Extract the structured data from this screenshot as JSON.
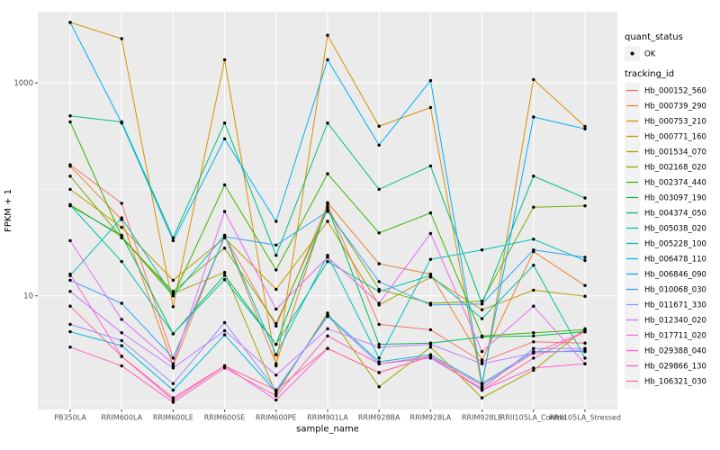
{
  "chart_data": {
    "type": "line",
    "title": "",
    "xlabel": "sample_name",
    "ylabel": "FPKM + 1",
    "y_scale": "log10",
    "y_tick_values": [
      10,
      1000
    ],
    "y_tick_labels": [
      "10",
      "1000"
    ],
    "y_gridlines_minor": [
      1,
      100
    ],
    "ylim": [
      0.7,
      5200
    ],
    "grid": "on",
    "legend_position": "right",
    "categories": [
      "PB350LA",
      "RRIM600LA",
      "RRIM600LE",
      "RRIM600SE",
      "RRIM600PE",
      "RRIM901LA",
      "RRIM928BA",
      "RRIM928LA",
      "RRIM928LE",
      "RRII105LA_Control",
      "RRII105LA_Stressed"
    ],
    "legend": {
      "quant_status": {
        "title": "quant_status",
        "items": [
          {
            "label": "OK",
            "shape": "point",
            "color": "#000000"
          }
        ]
      },
      "tracking": {
        "title": "tracking_id"
      }
    },
    "style": {
      "panel_bg": "#EBEBEB",
      "grid_color": "#FFFFFF",
      "legend_key_bg": "#F2F2F2",
      "tick_text_color": "#4D4D4D",
      "tick_mark_color": "#333333",
      "point_color": "#000000",
      "title_text_color": "#000000"
    },
    "series": [
      {
        "name": "Hb_000152_560",
        "color": "#F8766D",
        "values": [
          170,
          74,
          2.6,
          36,
          5.2,
          72,
          5.4,
          4.8,
          2.4,
          3.7,
          3.6
        ]
      },
      {
        "name": "Hb_000739_290",
        "color": "#EA8331",
        "values": [
          165,
          52,
          2.2,
          37,
          2.3,
          75,
          20,
          16,
          2.5,
          26,
          12.5
        ]
      },
      {
        "name": "Hb_000753_210",
        "color": "#D89000",
        "values": [
          3700,
          2600,
          7.9,
          1650,
          2.2,
          2800,
          392,
          587,
          1.4,
          1075,
          390
        ]
      },
      {
        "name": "Hb_000771_160",
        "color": "#C09B00",
        "values": [
          100,
          44,
          14,
          35,
          11.5,
          50,
          8.2,
          15,
          7.4,
          11.3,
          9.9
        ]
      },
      {
        "name": "Hb_001534_070",
        "color": "#A3A500",
        "values": [
          72,
          36,
          10.5,
          16.6,
          1.2,
          6.9,
          1.4,
          3.3,
          1.1,
          2.0,
          4.9
        ]
      },
      {
        "name": "Hb_002168_020",
        "color": "#7CAE00",
        "values": [
          133,
          35,
          11,
          28,
          5.5,
          65,
          11.5,
          8.5,
          8.9,
          68,
          70
        ]
      },
      {
        "name": "Hb_002374_440",
        "color": "#39B600",
        "values": [
          430,
          36,
          10,
          110,
          17.5,
          140,
          39,
          60,
          4.2,
          4.5,
          4.8
        ]
      },
      {
        "name": "Hb_003097_190",
        "color": "#00BB4E",
        "values": [
          70,
          37,
          4.4,
          15.6,
          3.5,
          68,
          3.5,
          3.6,
          4.1,
          4.2,
          4.6
        ]
      },
      {
        "name": "Hb_004374_050",
        "color": "#00BF7D",
        "values": [
          490,
          430,
          35,
          420,
          24,
          420,
          100,
          166,
          8.4,
          133,
          83
        ]
      },
      {
        "name": "Hb_005038_020",
        "color": "#00C1A3",
        "values": [
          71,
          21,
          4.4,
          14.2,
          3.5,
          21,
          11,
          15.5,
          6.1,
          19.4,
          2.6
        ]
      },
      {
        "name": "Hb_005228_100",
        "color": "#00BFC4",
        "values": [
          15.5,
          54,
          10,
          37,
          2.8,
          24,
          2.6,
          22,
          27,
          34,
          21.5
        ]
      },
      {
        "name": "Hb_006478_110",
        "color": "#00BAE0",
        "values": [
          4.6,
          3.4,
          1.3,
          4.3,
          1.25,
          6.6,
          2.4,
          2.8,
          1.5,
          3.0,
          3.0
        ]
      },
      {
        "name": "Hb_006846_090",
        "color": "#00B0F6",
        "values": [
          3700,
          420,
          33,
          298,
          50,
          1650,
          260,
          1050,
          1.5,
          478,
          370
        ]
      },
      {
        "name": "Hb_010068_030",
        "color": "#35A2FF",
        "values": [
          14,
          8.5,
          2.6,
          36,
          30,
          62,
          13.6,
          8.2,
          8.4,
          27,
          23
        ]
      },
      {
        "name": "Hb_011671_330",
        "color": "#9590FF",
        "values": [
          5.4,
          3.8,
          1.5,
          5.6,
          1.3,
          6.4,
          2.3,
          2.6,
          1.35,
          3.2,
          3.2
        ]
      },
      {
        "name": "Hb_012340_020",
        "color": "#C77CFF",
        "values": [
          11,
          4.5,
          2.1,
          4.7,
          1.8,
          4.9,
          3.3,
          3.5,
          2.3,
          2.9,
          3.1
        ]
      },
      {
        "name": "Hb_017711_020",
        "color": "#E76BF3",
        "values": [
          33,
          6.0,
          2.3,
          62,
          7.5,
          23,
          8.5,
          38.5,
          3.0,
          8.0,
          2.3
        ]
      },
      {
        "name": "Hb_029388_040",
        "color": "#FA62DB",
        "values": [
          16,
          2.7,
          1.05,
          2.2,
          1.05,
          3.2,
          1.9,
          2.7,
          1.3,
          2.1,
          2.3
        ]
      },
      {
        "name": "Hb_029866_130",
        "color": "#FF62BC",
        "values": [
          3.3,
          2.2,
          1.0,
          2.1,
          1.15,
          4.2,
          2.3,
          2.7,
          1.45,
          2.9,
          4.6
        ]
      },
      {
        "name": "Hb_106321_030",
        "color": "#FF6A98",
        "values": [
          8.0,
          2.7,
          1.1,
          2.2,
          1.3,
          3.2,
          1.9,
          2.7,
          1.3,
          2.6,
          4.6
        ]
      }
    ]
  }
}
